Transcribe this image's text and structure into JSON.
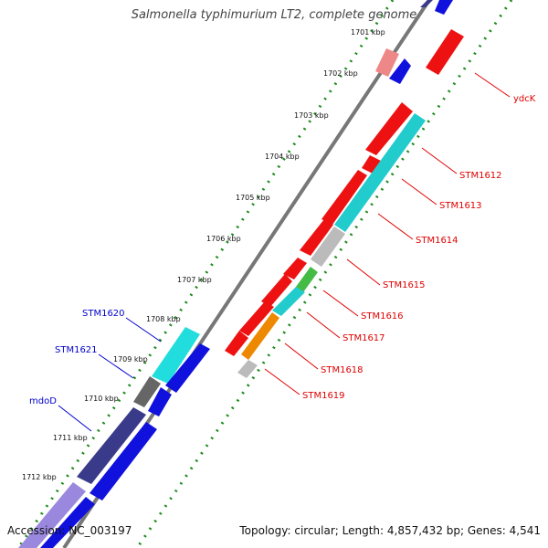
{
  "title": "Salmonella typhimurium LT2, complete genome",
  "accession": "Accession: NC_003197",
  "summary": "Topology: circular; Length: 4,857,432 bp; Genes: 4,541",
  "ticks": [
    "1701 kbp",
    "1702 kbp",
    "1703 kbp",
    "1704 kbp",
    "1705 kbp",
    "1706 kbp",
    "1707 kbp",
    "1708 kbp",
    "1709 kbp",
    "1710 kbp",
    "1711 kbp",
    "1712 kbp"
  ],
  "genes_right": [
    "ydcK",
    "STM1612",
    "STM1613",
    "STM1614",
    "STM1615",
    "STM1616",
    "STM1617",
    "STM1618",
    "STM1619"
  ],
  "genes_left": [
    "STM1620",
    "STM1621",
    "mdoD"
  ],
  "colors": {
    "red": "#ee1111",
    "blue": "#1111dd",
    "cyan": "#22cccc",
    "navy": "#3a3a8a",
    "gray": "#666666",
    "pink": "#ee8888",
    "green": "#44bb44",
    "orange": "#ee8800",
    "lavender": "#9988dd"
  }
}
